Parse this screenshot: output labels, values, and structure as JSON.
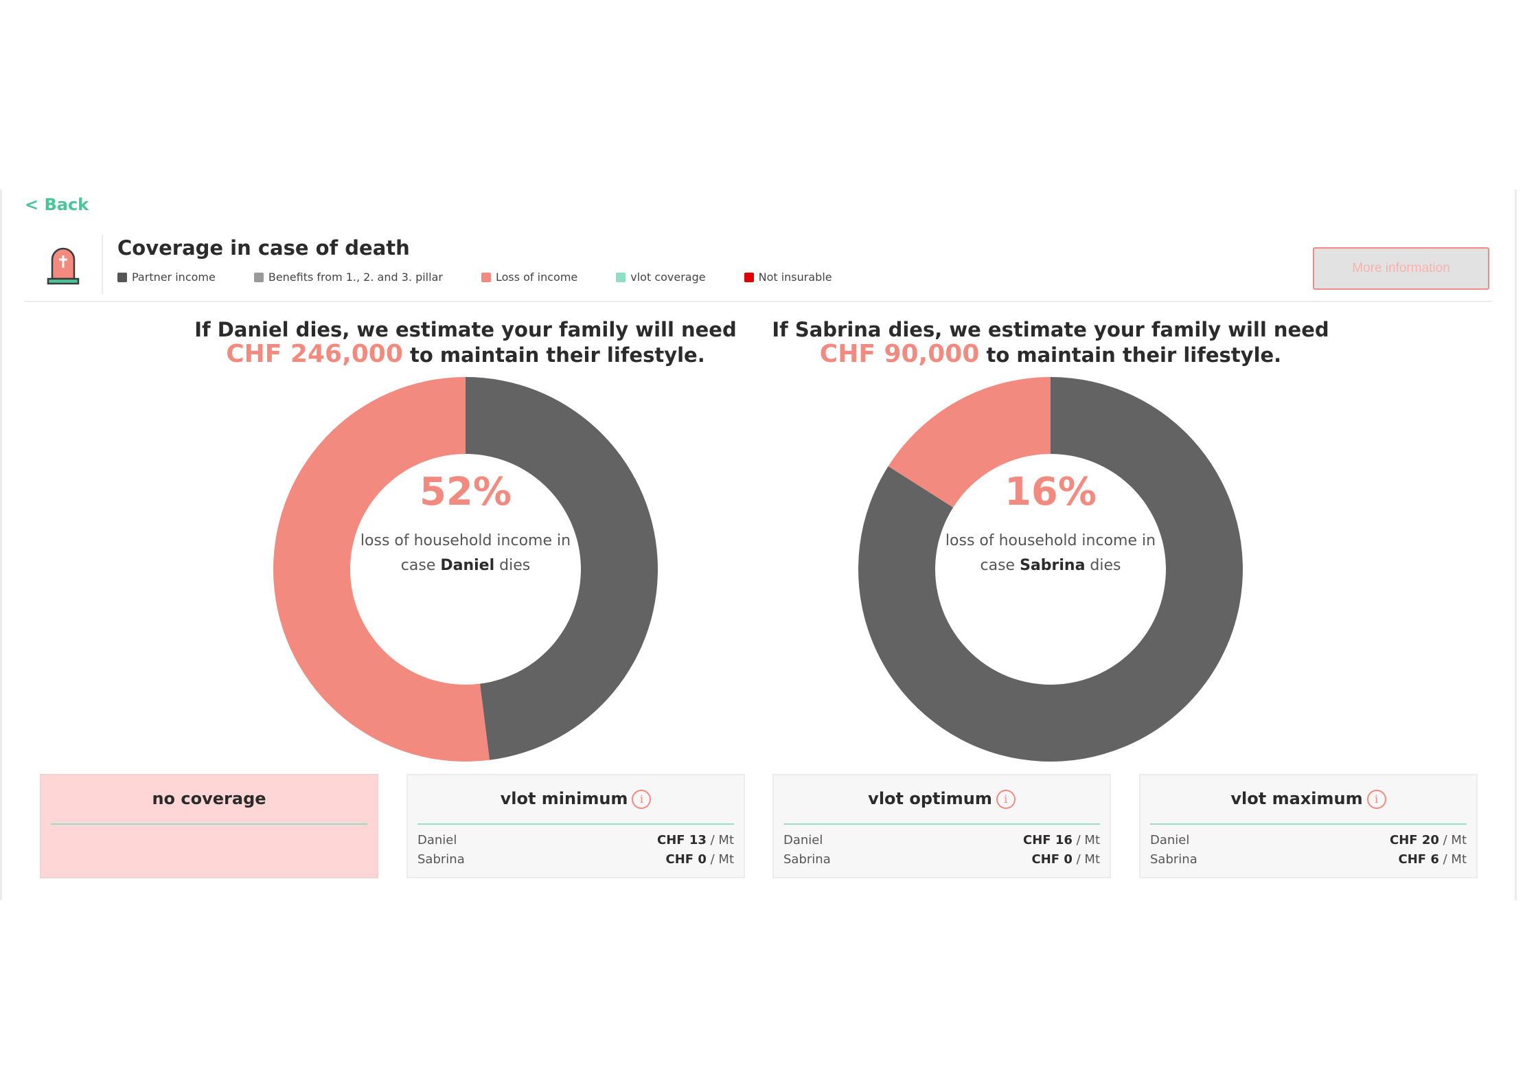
{
  "nav": {
    "back_label": "< Back"
  },
  "header": {
    "title": "Coverage in case of death",
    "icon": "tombstone-icon",
    "more_info_label": "More information"
  },
  "legend": [
    {
      "label": "Partner income",
      "color": "#555555"
    },
    {
      "label": "Benefits from 1., 2. and 3. pillar",
      "color": "#9a9a9a"
    },
    {
      "label": "Loss of income",
      "color": "#f38a80"
    },
    {
      "label": "vlot coverage",
      "color": "#8ee0c4"
    },
    {
      "label": "Not insurable",
      "color": "#e00000"
    }
  ],
  "colors": {
    "accent_green": "#4cc49a",
    "loss": "#f38a80",
    "partner": "#636363"
  },
  "charts": [
    {
      "headline_pre": "If Daniel dies, we estimate your family will need",
      "amount": "CHF 246,000",
      "headline_post": "to maintain their lifestyle.",
      "percent": "52%",
      "caption_pre": "loss of household income in case",
      "person": "Daniel",
      "caption_post": "dies"
    },
    {
      "headline_pre": "If Sabrina dies, we estimate your family will need",
      "amount": "CHF 90,000",
      "headline_post": "to maintain their lifestyle.",
      "percent": "16%",
      "caption_pre": "loss of household income in case",
      "person": "Sabrina",
      "caption_post": "dies"
    }
  ],
  "chart_data": [
    {
      "type": "pie",
      "variant": "donut",
      "categories": [
        "Loss of income",
        "Partner income"
      ],
      "values": [
        52,
        48
      ],
      "colors": [
        "#f38a80",
        "#636363"
      ]
    },
    {
      "type": "pie",
      "variant": "donut",
      "categories": [
        "Loss of income",
        "Partner income"
      ],
      "values": [
        16,
        84
      ],
      "colors": [
        "#f38a80",
        "#636363"
      ]
    }
  ],
  "plans": [
    {
      "title": "no coverage",
      "info": false,
      "rows": []
    },
    {
      "title": "vlot minimum",
      "info": true,
      "rows": [
        {
          "name": "Daniel",
          "amount": "CHF 13",
          "unit": "/ Mt"
        },
        {
          "name": "Sabrina",
          "amount": "CHF 0",
          "unit": "/ Mt"
        }
      ]
    },
    {
      "title": "vlot optimum",
      "info": true,
      "rows": [
        {
          "name": "Daniel",
          "amount": "CHF 16",
          "unit": "/ Mt"
        },
        {
          "name": "Sabrina",
          "amount": "CHF 0",
          "unit": "/ Mt"
        }
      ]
    },
    {
      "title": "vlot maximum",
      "info": true,
      "rows": [
        {
          "name": "Daniel",
          "amount": "CHF 20",
          "unit": "/ Mt"
        },
        {
          "name": "Sabrina",
          "amount": "CHF 6",
          "unit": "/ Mt"
        }
      ]
    }
  ]
}
